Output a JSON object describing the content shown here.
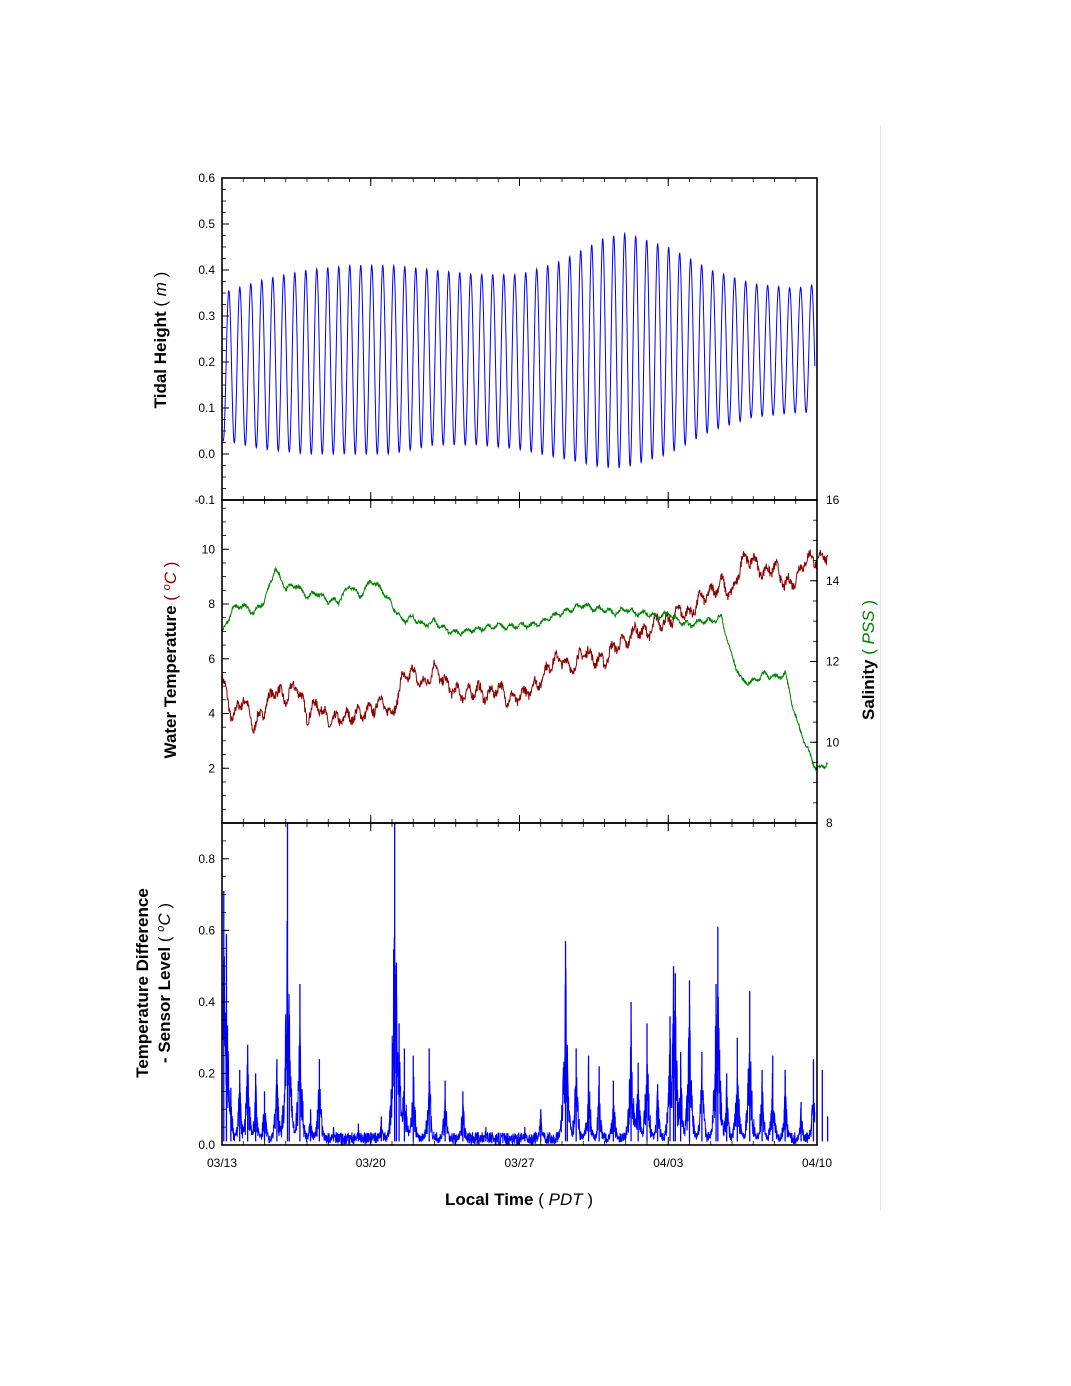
{
  "figure": {
    "xlabel": "Local Time",
    "xlabel_unit": "PDT",
    "x_ticks": [
      "03/13",
      "03/20",
      "03/27",
      "04/03",
      "04/10"
    ],
    "colors": {
      "tide": "#0000ff",
      "temperature": "#8b0000",
      "salinity": "#008000",
      "temp_diff": "#0000ff",
      "axes": "#000000"
    }
  },
  "chart_data": [
    {
      "type": "line",
      "id": "tidal-height",
      "ylabel": "Tidal Height",
      "ylabel_unit": "m",
      "ylim": [
        -0.1,
        0.6
      ],
      "y_ticks": [
        "-0.1",
        "0.0",
        "0.1",
        "0.2",
        "0.3",
        "0.4",
        "0.5",
        "0.6"
      ],
      "xlim": [
        "03/13",
        "04/10"
      ],
      "grid": false,
      "tide_period_days": 0.5175,
      "high_water_envelope": [
        {
          "x": "03/13",
          "y": 0.35
        },
        {
          "x": "03/15",
          "y": 0.38
        },
        {
          "x": "03/17",
          "y": 0.4
        },
        {
          "x": "03/19",
          "y": 0.41
        },
        {
          "x": "03/21",
          "y": 0.41
        },
        {
          "x": "03/23",
          "y": 0.4
        },
        {
          "x": "03/25",
          "y": 0.39
        },
        {
          "x": "03/27",
          "y": 0.39
        },
        {
          "x": "03/29",
          "y": 0.42
        },
        {
          "x": "03/31",
          "y": 0.47
        },
        {
          "x": "04/01",
          "y": 0.48
        },
        {
          "x": "04/03",
          "y": 0.45
        },
        {
          "x": "04/05",
          "y": 0.4
        },
        {
          "x": "04/07",
          "y": 0.37
        },
        {
          "x": "04/09",
          "y": 0.36
        },
        {
          "x": "04/10",
          "y": 0.37
        }
      ],
      "low_water_envelope": [
        {
          "x": "03/13",
          "y": 0.03
        },
        {
          "x": "03/15",
          "y": 0.01
        },
        {
          "x": "03/17",
          "y": 0.0
        },
        {
          "x": "03/19",
          "y": 0.0
        },
        {
          "x": "03/21",
          "y": 0.0
        },
        {
          "x": "03/23",
          "y": 0.02
        },
        {
          "x": "03/25",
          "y": 0.02
        },
        {
          "x": "03/27",
          "y": 0.01
        },
        {
          "x": "03/29",
          "y": -0.01
        },
        {
          "x": "03/31",
          "y": -0.03
        },
        {
          "x": "04/01",
          "y": -0.03
        },
        {
          "x": "04/03",
          "y": 0.0
        },
        {
          "x": "04/05",
          "y": 0.05
        },
        {
          "x": "04/07",
          "y": 0.08
        },
        {
          "x": "04/09",
          "y": 0.09
        },
        {
          "x": "04/10",
          "y": 0.09
        }
      ]
    },
    {
      "type": "line",
      "id": "temperature-salinity",
      "ylabel": "Water Temperature",
      "ylabel_unit": "oC",
      "ylim": [
        0,
        11.8
      ],
      "y_ticks": [
        "2",
        "4",
        "6",
        "8",
        "10"
      ],
      "y2label": "Salinity",
      "y2label_unit": "PSS",
      "y2lim": [
        8,
        16
      ],
      "y2_ticks": [
        "8",
        "10",
        "12",
        "14",
        "16"
      ],
      "xlim": [
        "03/13",
        "04/10"
      ],
      "grid": false,
      "series": [
        {
          "axis": "left",
          "color": "#8b0000",
          "points": [
            {
              "x": "03/13 00:00",
              "y": 5.3
            },
            {
              "x": "03/13 12:00",
              "y": 3.8
            },
            {
              "x": "03/14 00:00",
              "y": 4.6
            },
            {
              "x": "03/14 12:00",
              "y": 3.5
            },
            {
              "x": "03/15 00:00",
              "y": 4.2
            },
            {
              "x": "03/15 12:00",
              "y": 4.9
            },
            {
              "x": "03/16 00:00",
              "y": 4.5
            },
            {
              "x": "03/16 12:00",
              "y": 5.1
            },
            {
              "x": "03/17 00:00",
              "y": 3.9
            },
            {
              "x": "03/17 12:00",
              "y": 4.4
            },
            {
              "x": "03/18 00:00",
              "y": 3.7
            },
            {
              "x": "03/18 12:00",
              "y": 3.8
            },
            {
              "x": "03/19 00:00",
              "y": 3.9
            },
            {
              "x": "03/19 12:00",
              "y": 4.0
            },
            {
              "x": "03/20 00:00",
              "y": 4.1
            },
            {
              "x": "03/20 12:00",
              "y": 4.5
            },
            {
              "x": "03/21 00:00",
              "y": 3.9
            },
            {
              "x": "03/21 12:00",
              "y": 5.3
            },
            {
              "x": "03/22 00:00",
              "y": 5.5
            },
            {
              "x": "03/22 12:00",
              "y": 5.0
            },
            {
              "x": "03/23 00:00",
              "y": 5.7
            },
            {
              "x": "03/23 12:00",
              "y": 5.1
            },
            {
              "x": "03/24 00:00",
              "y": 4.8
            },
            {
              "x": "03/24 12:00",
              "y": 4.7
            },
            {
              "x": "03/25 00:00",
              "y": 4.9
            },
            {
              "x": "03/25 12:00",
              "y": 4.6
            },
            {
              "x": "03/26 00:00",
              "y": 5.0
            },
            {
              "x": "03/26 12:00",
              "y": 4.5
            },
            {
              "x": "03/27 00:00",
              "y": 4.6
            },
            {
              "x": "03/27 12:00",
              "y": 4.9
            },
            {
              "x": "03/28 00:00",
              "y": 5.2
            },
            {
              "x": "03/28 12:00",
              "y": 5.9
            },
            {
              "x": "03/29 00:00",
              "y": 6.0
            },
            {
              "x": "03/29 12:00",
              "y": 5.6
            },
            {
              "x": "03/30 00:00",
              "y": 6.3
            },
            {
              "x": "03/30 12:00",
              "y": 6.0
            },
            {
              "x": "03/31 00:00",
              "y": 5.9
            },
            {
              "x": "03/31 12:00",
              "y": 6.5
            },
            {
              "x": "04/01 00:00",
              "y": 6.6
            },
            {
              "x": "04/01 12:00",
              "y": 7.1
            },
            {
              "x": "04/02 00:00",
              "y": 6.9
            },
            {
              "x": "04/02 12:00",
              "y": 7.4
            },
            {
              "x": "04/03 00:00",
              "y": 7.3
            },
            {
              "x": "04/03 12:00",
              "y": 7.8
            },
            {
              "x": "04/04 00:00",
              "y": 7.6
            },
            {
              "x": "04/04 12:00",
              "y": 8.2
            },
            {
              "x": "04/05 00:00",
              "y": 8.4
            },
            {
              "x": "04/05 12:00",
              "y": 8.8
            },
            {
              "x": "04/06 00:00",
              "y": 8.3
            },
            {
              "x": "04/06 12:00",
              "y": 9.7
            },
            {
              "x": "04/07 00:00",
              "y": 9.6
            },
            {
              "x": "04/07 12:00",
              "y": 9.1
            },
            {
              "x": "04/08 00:00",
              "y": 9.4
            },
            {
              "x": "04/08 12:00",
              "y": 8.7
            },
            {
              "x": "04/09 00:00",
              "y": 8.9
            },
            {
              "x": "04/09 12:00",
              "y": 9.7
            },
            {
              "x": "04/10 00:00",
              "y": 9.6
            },
            {
              "x": "04/10 12:00",
              "y": 9.8
            }
          ]
        },
        {
          "axis": "right",
          "color": "#008000",
          "points": [
            {
              "x": "03/13 00:00",
              "y": 12.7
            },
            {
              "x": "03/13 12:00",
              "y": 13.3
            },
            {
              "x": "03/14 00:00",
              "y": 13.4
            },
            {
              "x": "03/14 12:00",
              "y": 13.2
            },
            {
              "x": "03/15 00:00",
              "y": 13.5
            },
            {
              "x": "03/15 12:00",
              "y": 14.3
            },
            {
              "x": "03/16 00:00",
              "y": 13.8
            },
            {
              "x": "03/16 12:00",
              "y": 13.9
            },
            {
              "x": "03/17 00:00",
              "y": 13.6
            },
            {
              "x": "03/17 12:00",
              "y": 13.7
            },
            {
              "x": "03/18 00:00",
              "y": 13.5
            },
            {
              "x": "03/18 12:00",
              "y": 13.5
            },
            {
              "x": "03/19 00:00",
              "y": 13.9
            },
            {
              "x": "03/19 12:00",
              "y": 13.6
            },
            {
              "x": "03/20 00:00",
              "y": 14.0
            },
            {
              "x": "03/20 12:00",
              "y": 13.8
            },
            {
              "x": "03/21 00:00",
              "y": 13.4
            },
            {
              "x": "03/21 12:00",
              "y": 13.0
            },
            {
              "x": "03/22 00:00",
              "y": 13.1
            },
            {
              "x": "03/22 12:00",
              "y": 12.9
            },
            {
              "x": "03/23 00:00",
              "y": 13.0
            },
            {
              "x": "03/23 12:00",
              "y": 12.8
            },
            {
              "x": "03/24 00:00",
              "y": 12.7
            },
            {
              "x": "03/24 12:00",
              "y": 12.75
            },
            {
              "x": "03/25 00:00",
              "y": 12.8
            },
            {
              "x": "03/25 12:00",
              "y": 12.85
            },
            {
              "x": "03/26 00:00",
              "y": 12.9
            },
            {
              "x": "03/26 12:00",
              "y": 12.85
            },
            {
              "x": "03/27 00:00",
              "y": 12.9
            },
            {
              "x": "03/27 12:00",
              "y": 12.9
            },
            {
              "x": "03/28 00:00",
              "y": 12.95
            },
            {
              "x": "03/28 12:00",
              "y": 13.1
            },
            {
              "x": "03/29 00:00",
              "y": 13.2
            },
            {
              "x": "03/29 12:00",
              "y": 13.3
            },
            {
              "x": "03/30 00:00",
              "y": 13.4
            },
            {
              "x": "03/30 12:00",
              "y": 13.3
            },
            {
              "x": "03/31 00:00",
              "y": 13.3
            },
            {
              "x": "03/31 12:00",
              "y": 13.2
            },
            {
              "x": "04/01 00:00",
              "y": 13.3
            },
            {
              "x": "04/01 12:00",
              "y": 13.2
            },
            {
              "x": "04/02 00:00",
              "y": 13.2
            },
            {
              "x": "04/02 12:00",
              "y": 13.1
            },
            {
              "x": "04/03 00:00",
              "y": 13.2
            },
            {
              "x": "04/03 12:00",
              "y": 13.0
            },
            {
              "x": "04/04 00:00",
              "y": 12.9
            },
            {
              "x": "04/04 12:00",
              "y": 13.0
            },
            {
              "x": "04/05 00:00",
              "y": 13.0
            },
            {
              "x": "04/05 12:00",
              "y": 13.1
            },
            {
              "x": "04/06 00:00",
              "y": 12.1
            },
            {
              "x": "04/06 12:00",
              "y": 11.5
            },
            {
              "x": "04/07 00:00",
              "y": 11.5
            },
            {
              "x": "04/07 12:00",
              "y": 11.7
            },
            {
              "x": "04/08 00:00",
              "y": 11.6
            },
            {
              "x": "04/08 12:00",
              "y": 11.7
            },
            {
              "x": "04/09 00:00",
              "y": 10.6
            },
            {
              "x": "04/09 12:00",
              "y": 9.9
            },
            {
              "x": "04/10 00:00",
              "y": 9.3
            },
            {
              "x": "04/10 12:00",
              "y": 9.5
            }
          ]
        }
      ]
    },
    {
      "type": "line",
      "id": "temperature-difference",
      "ylabel": "Temperature Difference",
      "ylabel_line2": "- Sensor Level",
      "ylabel_unit": "oC",
      "ylim": [
        0,
        0.9
      ],
      "y_ticks": [
        "0.0",
        "0.2",
        "0.4",
        "0.6",
        "0.8"
      ],
      "xlim": [
        "03/13",
        "04/10"
      ],
      "grid": false,
      "baseline": 0.02,
      "spikes": [
        {
          "x": "03/13 02:00",
          "y": 0.71
        },
        {
          "x": "03/13 05:00",
          "y": 0.59
        },
        {
          "x": "03/13 10:00",
          "y": 0.16
        },
        {
          "x": "03/13 20:00",
          "y": 0.21
        },
        {
          "x": "03/14 05:00",
          "y": 0.28
        },
        {
          "x": "03/14 14:00",
          "y": 0.2
        },
        {
          "x": "03/15 00:00",
          "y": 0.15
        },
        {
          "x": "03/15 14:00",
          "y": 0.24
        },
        {
          "x": "03/16 02:00",
          "y": 0.9
        },
        {
          "x": "03/16 04:00",
          "y": 0.34
        },
        {
          "x": "03/16 16:00",
          "y": 0.45
        },
        {
          "x": "03/17 04:00",
          "y": 0.1
        },
        {
          "x": "03/17 14:00",
          "y": 0.24
        },
        {
          "x": "03/18 06:00",
          "y": 0.05
        },
        {
          "x": "03/19 10:00",
          "y": 0.06
        },
        {
          "x": "03/20 12:00",
          "y": 0.08
        },
        {
          "x": "03/21 03:00",
          "y": 0.9
        },
        {
          "x": "03/21 05:00",
          "y": 0.51
        },
        {
          "x": "03/21 08:00",
          "y": 0.34
        },
        {
          "x": "03/21 14:00",
          "y": 0.27
        },
        {
          "x": "03/22 00:00",
          "y": 0.25
        },
        {
          "x": "03/22 18:00",
          "y": 0.27
        },
        {
          "x": "03/23 12:00",
          "y": 0.18
        },
        {
          "x": "03/24 08:00",
          "y": 0.15
        },
        {
          "x": "03/25 10:00",
          "y": 0.05
        },
        {
          "x": "03/27 06:00",
          "y": 0.05
        },
        {
          "x": "03/28 00:00",
          "y": 0.1
        },
        {
          "x": "03/29 04:00",
          "y": 0.57
        },
        {
          "x": "03/29 06:00",
          "y": 0.28
        },
        {
          "x": "03/29 16:00",
          "y": 0.27
        },
        {
          "x": "03/30 06:00",
          "y": 0.25
        },
        {
          "x": "03/30 18:00",
          "y": 0.22
        },
        {
          "x": "03/31 10:00",
          "y": 0.18
        },
        {
          "x": "04/01 06:00",
          "y": 0.4
        },
        {
          "x": "04/01 14:00",
          "y": 0.23
        },
        {
          "x": "04/02 00:00",
          "y": 0.34
        },
        {
          "x": "04/02 12:00",
          "y": 0.17
        },
        {
          "x": "04/03 02:00",
          "y": 0.36
        },
        {
          "x": "04/03 06:00",
          "y": 0.5
        },
        {
          "x": "04/03 08:00",
          "y": 0.48
        },
        {
          "x": "04/03 14:00",
          "y": 0.26
        },
        {
          "x": "04/04 00:00",
          "y": 0.46
        },
        {
          "x": "04/04 14:00",
          "y": 0.26
        },
        {
          "x": "04/05 06:00",
          "y": 0.45
        },
        {
          "x": "04/05 08:00",
          "y": 0.61
        },
        {
          "x": "04/05 18:00",
          "y": 0.2
        },
        {
          "x": "04/06 06:00",
          "y": 0.3
        },
        {
          "x": "04/06 20:00",
          "y": 0.43
        },
        {
          "x": "04/07 10:00",
          "y": 0.21
        },
        {
          "x": "04/07 22:00",
          "y": 0.25
        },
        {
          "x": "04/08 12:00",
          "y": 0.21
        },
        {
          "x": "04/09 06:00",
          "y": 0.12
        },
        {
          "x": "04/09 20:00",
          "y": 0.24
        },
        {
          "x": "04/10 06:00",
          "y": 0.21
        },
        {
          "x": "04/10 12:00",
          "y": 0.08
        }
      ]
    }
  ]
}
